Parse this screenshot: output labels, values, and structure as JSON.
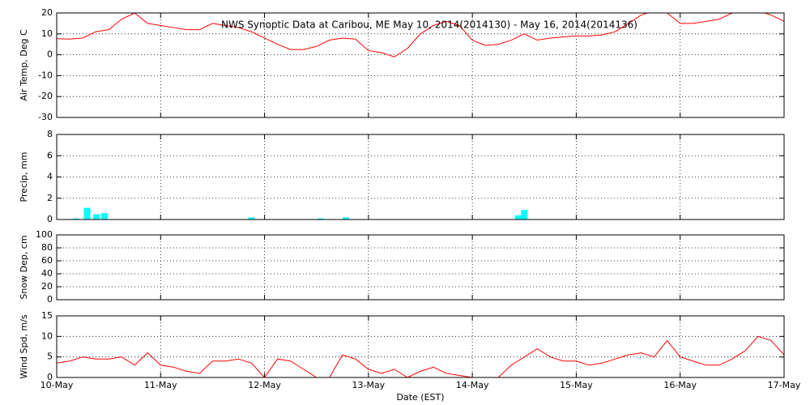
{
  "chart_data": [
    {
      "type": "line",
      "title": "NWS Synoptic Data at Caribou, ME   May 10, 2014(2014130) - May 16, 2014(2014136)",
      "ylabel": "Air Temp, Deg C",
      "ylim": [
        -30,
        20
      ],
      "yticks": [
        -30,
        -20,
        -10,
        0,
        10,
        20
      ],
      "grid": true,
      "color": "#ff0000",
      "x": [
        0,
        3,
        6,
        9,
        12,
        15,
        18,
        21,
        24,
        27,
        30,
        33,
        36,
        39,
        42,
        45,
        48,
        51,
        54,
        57,
        60,
        63,
        66,
        69,
        72,
        75,
        78,
        81,
        84,
        87,
        90,
        93,
        96,
        99,
        102,
        105,
        108,
        111,
        114,
        117,
        120,
        123,
        126,
        129,
        132,
        135,
        138,
        141,
        144,
        147,
        150,
        153,
        156,
        159,
        162,
        165,
        168
      ],
      "values": [
        7.7,
        7.5,
        8,
        11,
        12,
        17,
        20,
        15,
        14,
        13,
        12,
        12,
        15,
        14,
        13,
        11,
        8,
        5,
        2.5,
        2.5,
        4,
        7,
        8,
        7.5,
        2,
        1,
        -1,
        3,
        10,
        14,
        16,
        14,
        7,
        4.5,
        5,
        7,
        10,
        7,
        8,
        8.5,
        9,
        9,
        9.5,
        11,
        15,
        19,
        21,
        20,
        15,
        15,
        16,
        17,
        20,
        22,
        21,
        19,
        16
      ]
    },
    {
      "type": "bar",
      "ylabel": "Precip, mm",
      "ylim": [
        0,
        8
      ],
      "yticks": [
        0,
        2,
        4,
        6,
        8
      ],
      "grid": true,
      "color": "#00ffff",
      "x": [
        4.5,
        7,
        9.2,
        11,
        45,
        61,
        66.8,
        106.6,
        108
      ],
      "values": [
        0.1,
        1.1,
        0.5,
        0.6,
        0.2,
        0.1,
        0.2,
        0.4,
        0.9
      ]
    },
    {
      "type": "line",
      "ylabel": "Snow Dep, cm",
      "ylim": [
        0,
        100
      ],
      "yticks": [
        0,
        20,
        40,
        60,
        80,
        100
      ],
      "grid": true
    },
    {
      "type": "line",
      "ylabel": "Wind Spd, m/s",
      "xlabel": "Date (EST)",
      "ylim": [
        0,
        15
      ],
      "yticks": [
        0,
        5,
        10,
        15
      ],
      "grid": true,
      "color": "#ff0000",
      "xlim": [
        0,
        168
      ],
      "xticks": [
        {
          "value": 0,
          "label": "10-May"
        },
        {
          "value": 24,
          "label": "11-May"
        },
        {
          "value": 48,
          "label": "12-May"
        },
        {
          "value": 72,
          "label": "13-May"
        },
        {
          "value": 96,
          "label": "14-May"
        },
        {
          "value": 120,
          "label": "15-May"
        },
        {
          "value": 144,
          "label": "16-May"
        },
        {
          "value": 168,
          "label": "17-May"
        }
      ],
      "x": [
        0,
        3,
        6,
        9,
        12,
        15,
        18,
        21,
        24,
        27,
        30,
        33,
        36,
        39,
        42,
        45,
        48,
        51,
        54,
        57,
        60,
        63,
        66,
        69,
        72,
        75,
        78,
        81,
        84,
        87,
        90,
        93,
        96,
        99,
        102,
        105,
        108,
        111,
        114,
        117,
        120,
        123,
        126,
        129,
        132,
        135,
        138,
        141,
        144,
        147,
        150,
        153,
        156,
        159,
        162,
        165,
        168
      ],
      "values": [
        3.5,
        4,
        5,
        4.5,
        4.5,
        5,
        3,
        6,
        3,
        2.5,
        1.5,
        1,
        4,
        4,
        4.5,
        3.5,
        0,
        4.5,
        4,
        2,
        0,
        0,
        5.5,
        4.5,
        2,
        1,
        2,
        0,
        1.5,
        2.5,
        1,
        0.5,
        0,
        0,
        0,
        3,
        5,
        7,
        5,
        4,
        4,
        3,
        3.5,
        4.5,
        5.5,
        6,
        5,
        9,
        5,
        4,
        3,
        3,
        4.5,
        6.5,
        10,
        9,
        5.5
      ]
    }
  ]
}
